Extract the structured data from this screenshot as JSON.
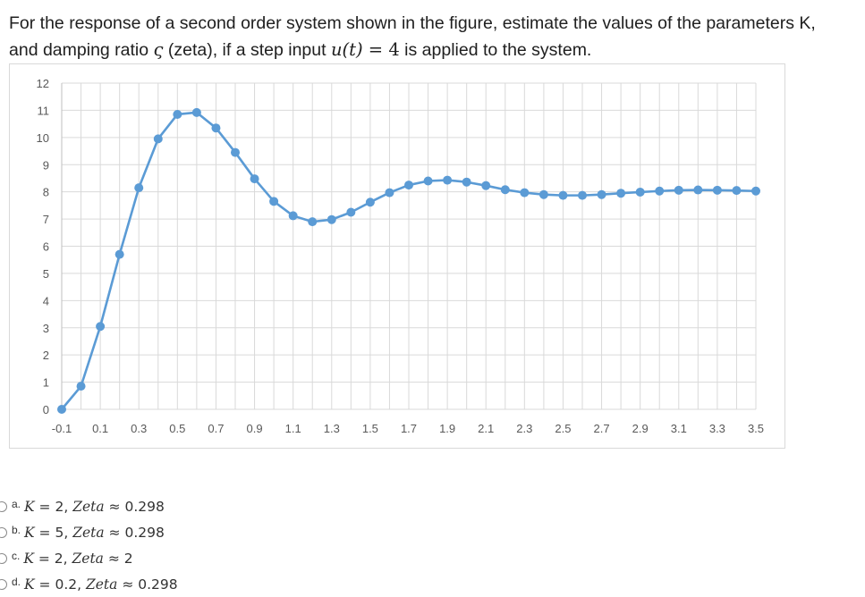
{
  "question": {
    "line1": "For the response of a second order system shown in the figure, estimate the values of the parameters K,",
    "line2_a": "and damping ratio ",
    "zeta_symbol": "ς",
    "line2_b": " (zeta), if a step input ",
    "input_expr": "u(t)",
    "input_eq": " = 4",
    "line2_c": " is applied to the system."
  },
  "chart_data": {
    "type": "line",
    "title": "",
    "xlabel": "",
    "ylabel": "",
    "x": [
      -0.1,
      0,
      0.1,
      0.2,
      0.3,
      0.4,
      0.5,
      0.6,
      0.7,
      0.8,
      0.9,
      1.0,
      1.1,
      1.2,
      1.3,
      1.4,
      1.5,
      1.6,
      1.7,
      1.8,
      1.9,
      2.0,
      2.1,
      2.2,
      2.3,
      2.4,
      2.5,
      2.6,
      2.7,
      2.8,
      2.9,
      3.0,
      3.1,
      3.2,
      3.3,
      3.4,
      3.5
    ],
    "series": [
      {
        "values": [
          0,
          0.85,
          3.05,
          5.7,
          8.15,
          9.95,
          10.85,
          10.92,
          10.35,
          9.45,
          8.48,
          7.65,
          7.12,
          6.9,
          6.98,
          7.25,
          7.62,
          7.97,
          8.25,
          8.4,
          8.43,
          8.36,
          8.23,
          8.08,
          7.97,
          7.9,
          7.87,
          7.87,
          7.9,
          7.95,
          7.99,
          8.03,
          8.06,
          8.07,
          8.06,
          8.05,
          8.03
        ]
      }
    ],
    "x_tick_labels": [
      "-0.1",
      "0.1",
      "0.3",
      "0.5",
      "0.7",
      "0.9",
      "1.1",
      "1.3",
      "1.5",
      "1.7",
      "1.9",
      "2.1",
      "2.3",
      "2.5",
      "2.7",
      "2.9",
      "3.1",
      "3.3",
      "3.5"
    ],
    "y_tick_labels": [
      "0",
      "1",
      "2",
      "3",
      "4",
      "5",
      "6",
      "7",
      "8",
      "9",
      "10",
      "11",
      "12"
    ],
    "xlim": [
      -0.1,
      3.5
    ],
    "ylim": [
      0,
      12
    ],
    "grid": true,
    "legend": "none",
    "line_color": "#5b9bd5",
    "grid_color": "#d9d9d9"
  },
  "options": [
    {
      "letter": "a.",
      "k_label": "K",
      "k_value": "= 2,",
      "zeta_label": "Zeta",
      "zeta_value": "≈ 0.298"
    },
    {
      "letter": "b.",
      "k_label": "K",
      "k_value": "= 5,",
      "zeta_label": "Zeta",
      "zeta_value": "≈ 0.298"
    },
    {
      "letter": "c.",
      "k_label": "K",
      "k_value": "= 2,",
      "zeta_label": "Zeta",
      "zeta_value": "≈ 2"
    },
    {
      "letter": "d.",
      "k_label": "K",
      "k_value": "= 0.2,",
      "zeta_label": "Zeta",
      "zeta_value": "≈ 0.298"
    }
  ]
}
